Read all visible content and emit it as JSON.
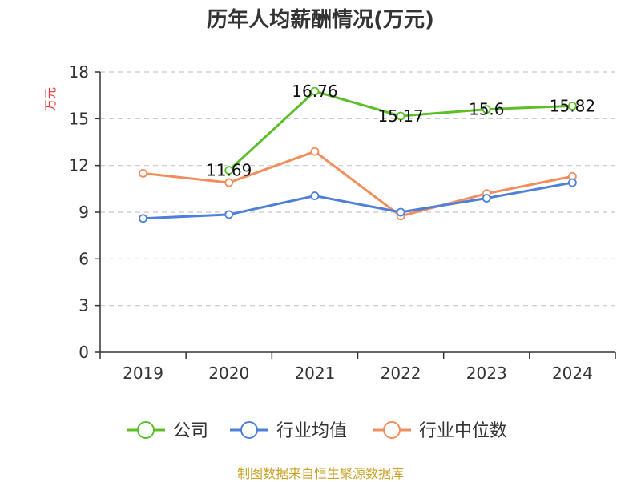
{
  "chart_data": {
    "type": "line",
    "title": "历年人均薪酬情况(万元)",
    "ylabel": "万元",
    "xlabel": "",
    "categories": [
      "2019",
      "2020",
      "2021",
      "2022",
      "2023",
      "2024"
    ],
    "ylim": [
      0,
      18
    ],
    "yticks": [
      0,
      3,
      6,
      9,
      12,
      15,
      18
    ],
    "grid": true,
    "legend_position": "bottom",
    "series": [
      {
        "name": "公司",
        "color": "#5cbf2a",
        "values": [
          null,
          11.69,
          16.76,
          15.17,
          15.6,
          15.82
        ],
        "labels": [
          "",
          "11.69",
          "16.76",
          "15.17",
          "15.6",
          "15.82"
        ]
      },
      {
        "name": "行业均值",
        "color": "#4e7fd9",
        "values": [
          8.6,
          8.85,
          10.05,
          9.0,
          9.9,
          10.9
        ],
        "labels": []
      },
      {
        "name": "行业中位数",
        "color": "#f28e5b",
        "values": [
          11.5,
          10.9,
          12.9,
          8.75,
          10.2,
          11.3
        ],
        "labels": []
      }
    ]
  },
  "footer": {
    "source": "制图数据来自恒生聚源数据库"
  }
}
